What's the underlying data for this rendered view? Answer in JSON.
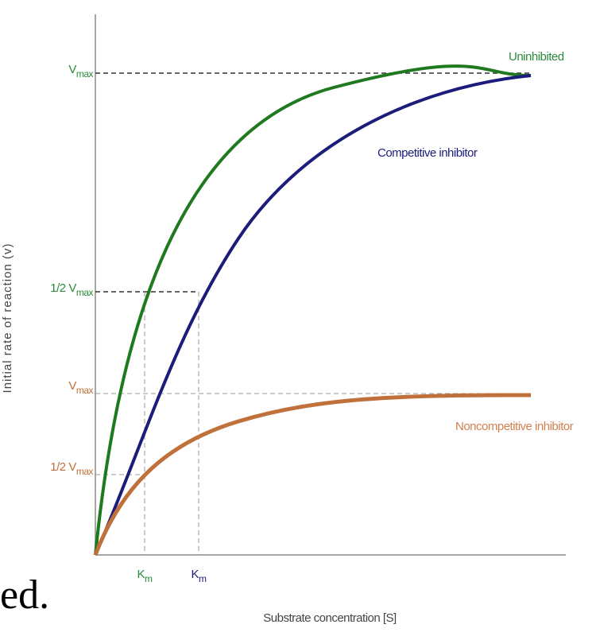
{
  "fragment": "ed.",
  "axes": {
    "y_label": "Initial rate of reaction (v)",
    "x_label": "Substrate concentration [S]"
  },
  "y_labels": [
    {
      "main": "V",
      "sub": "max"
    },
    {
      "main": "1/2 V",
      "sub": "max"
    },
    {
      "main": "V",
      "sub": "max"
    },
    {
      "main": "1/2 V",
      "sub": "max"
    }
  ],
  "x_labels": [
    {
      "main": "K",
      "sub": "m"
    },
    {
      "main": "K",
      "sub": "m"
    }
  ],
  "curves": [
    {
      "label": "Uninhibited"
    },
    {
      "label": "Competitive inhibitor"
    },
    {
      "label": "Noncompetitive inhibitor"
    }
  ]
}
